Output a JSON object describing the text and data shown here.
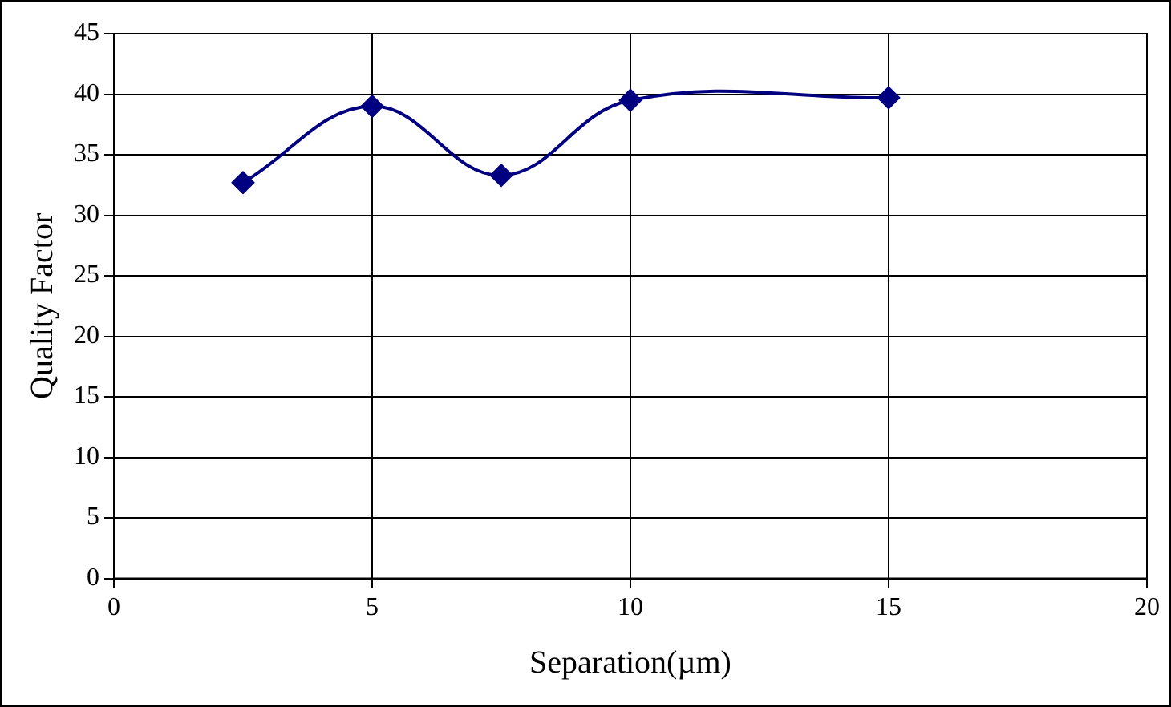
{
  "chart_data": {
    "type": "line",
    "xlabel": "Separation(µm)",
    "ylabel": "Quality Factor",
    "x": [
      2.5,
      5,
      7.5,
      10,
      15
    ],
    "series": [
      {
        "color": "#000080",
        "values": [
          32.7,
          39,
          33.3,
          39.5,
          39.7
        ]
      }
    ],
    "xlim": [
      0,
      20
    ],
    "xticks": [
      0,
      5,
      10,
      15,
      20
    ],
    "ylim": [
      0,
      45
    ],
    "yticks": [
      0,
      5,
      10,
      15,
      20,
      25,
      30,
      35,
      40,
      45
    ],
    "grid": true,
    "legend": false,
    "marker": "diamond",
    "line_style": "solid"
  }
}
